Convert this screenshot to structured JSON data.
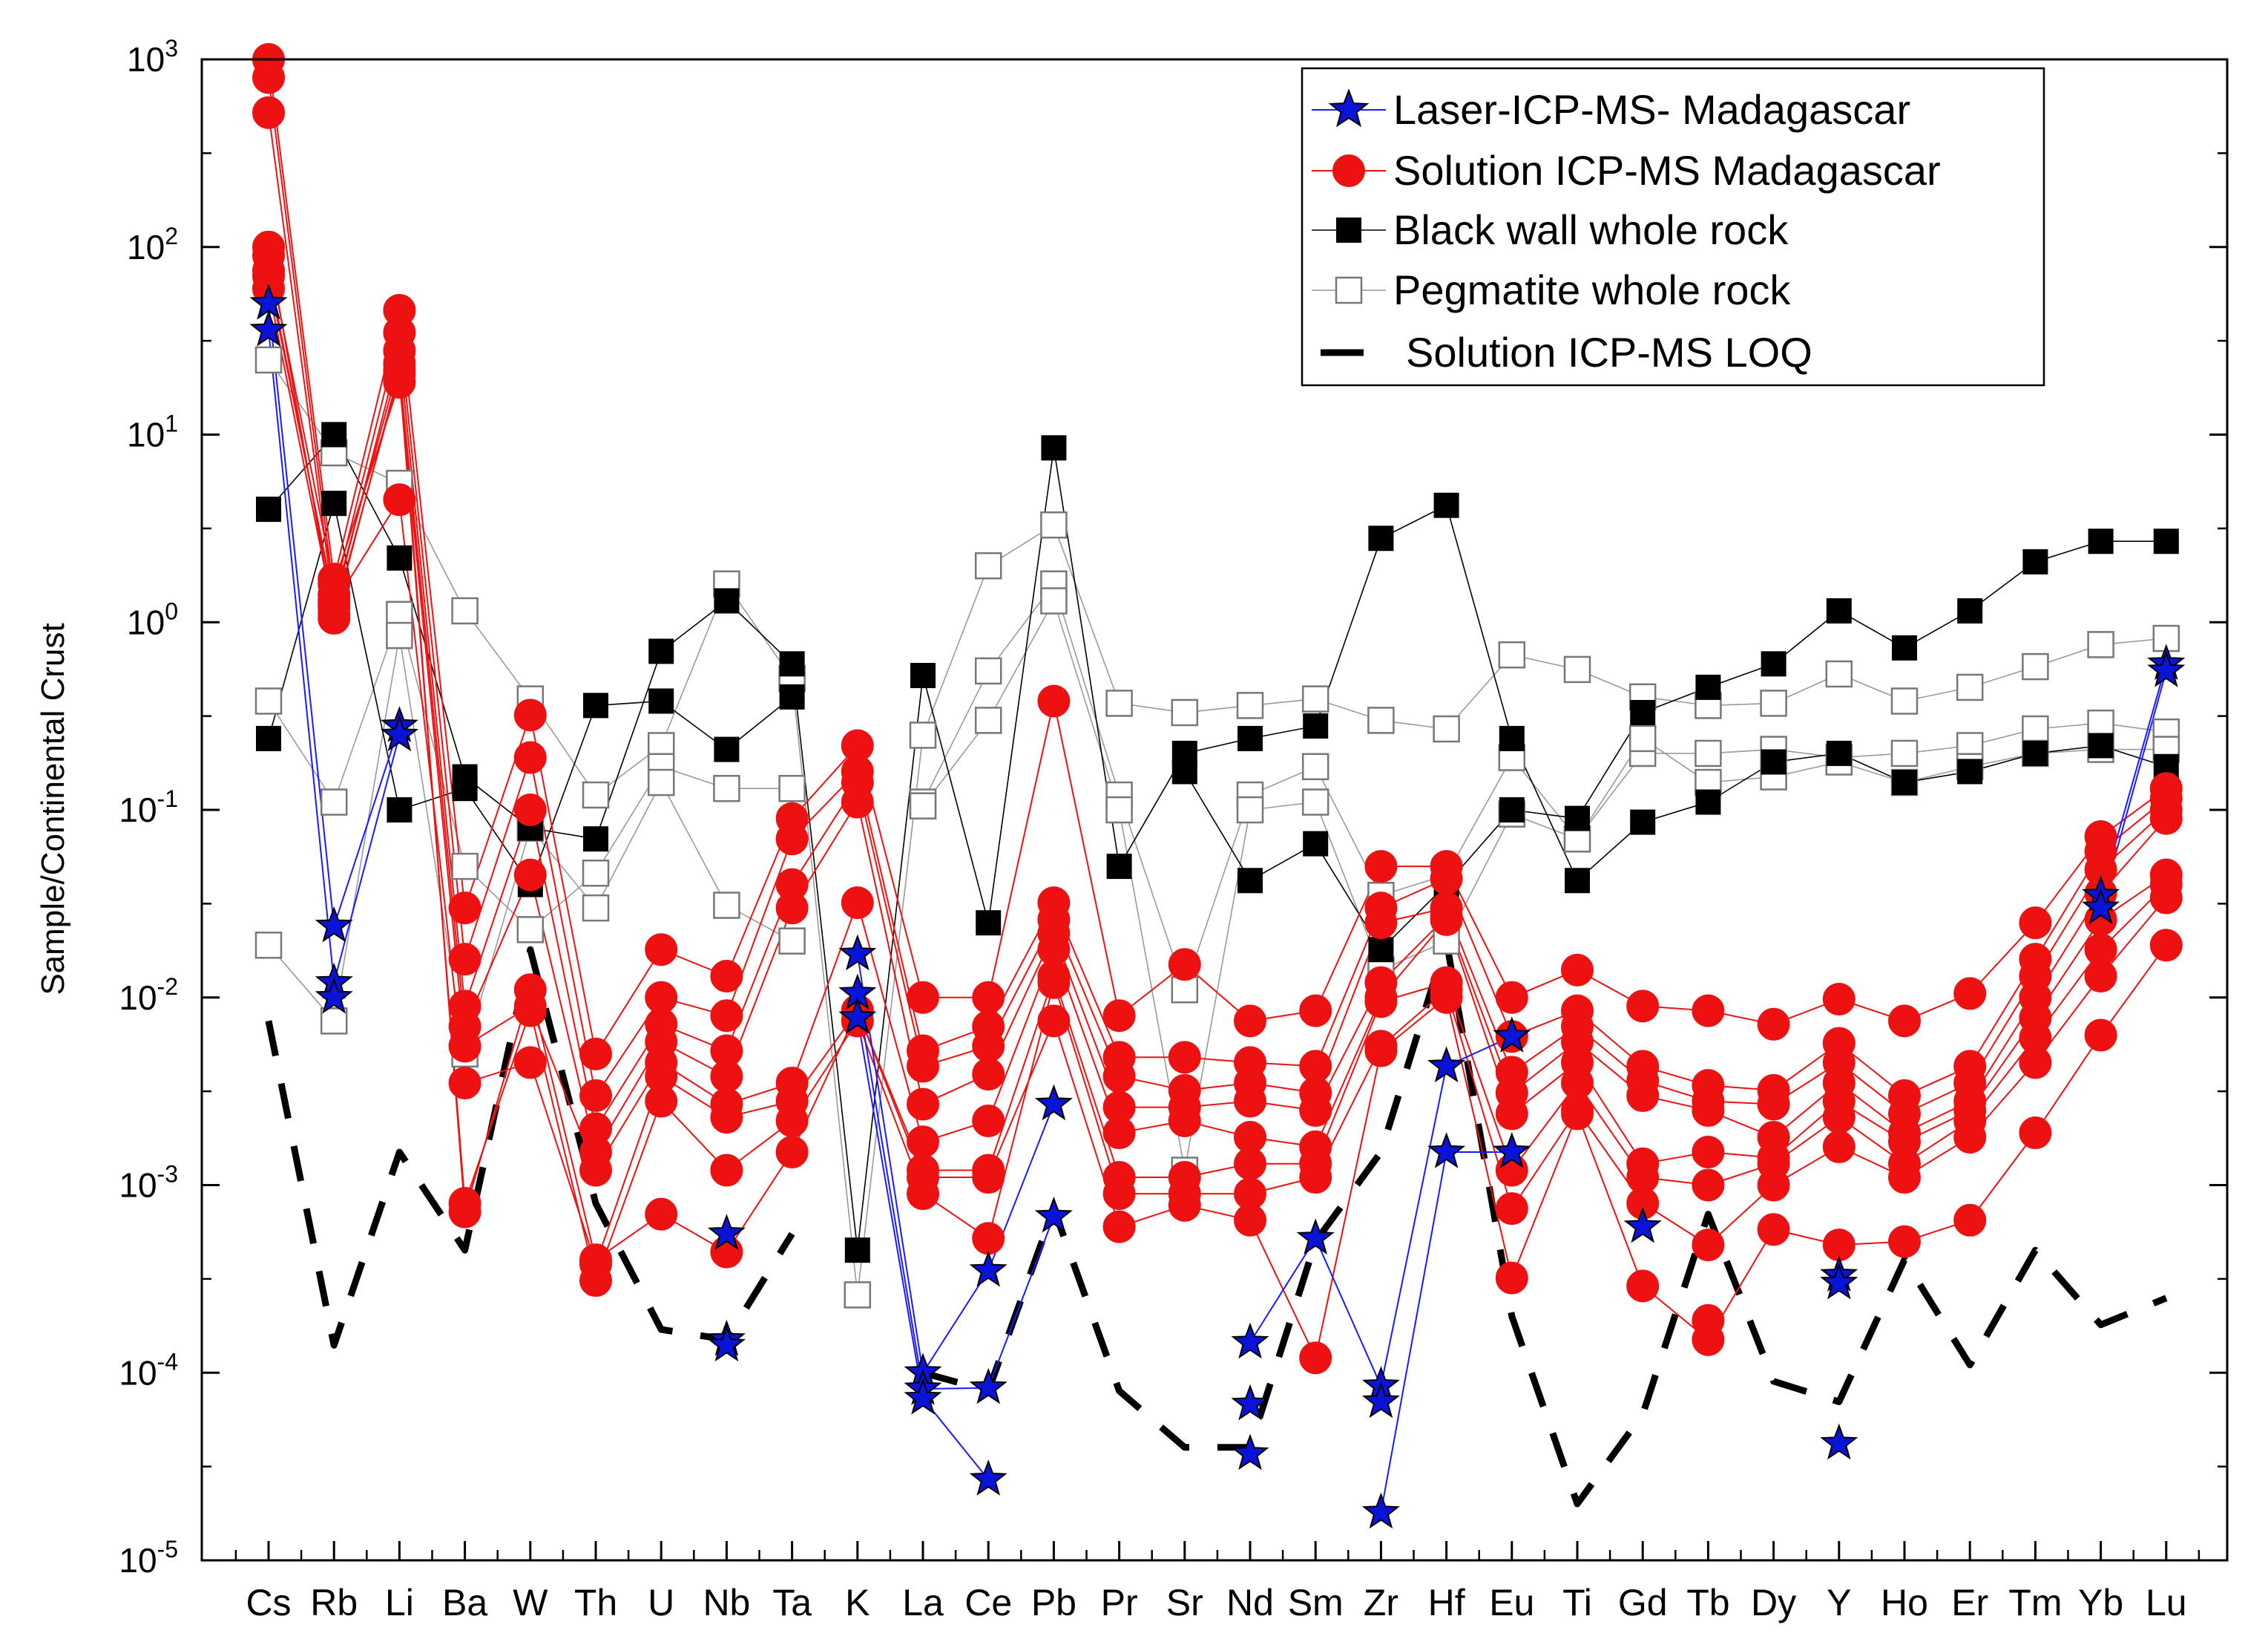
{
  "chart_data": {
    "type": "line",
    "yscale": "log",
    "ylim": [
      1e-05,
      1000
    ],
    "ylabel": "Sample/Continental Crust",
    "xlabel": "",
    "ytick_labels": [
      {
        "base": "10",
        "exp": "-5"
      },
      {
        "base": "10",
        "exp": "-4"
      },
      {
        "base": "10",
        "exp": "-3"
      },
      {
        "base": "10",
        "exp": "-2"
      },
      {
        "base": "10",
        "exp": "-1"
      },
      {
        "base": "10",
        "exp": "0"
      },
      {
        "base": "10",
        "exp": "1"
      },
      {
        "base": "10",
        "exp": "2"
      },
      {
        "base": "10",
        "exp": "3"
      }
    ],
    "categories": [
      "Cs",
      "Rb",
      "Li",
      "Ba",
      "W",
      "Th",
      "U",
      "Nb",
      "Ta",
      "K",
      "La",
      "Ce",
      "Pb",
      "Pr",
      "Sr",
      "Nd",
      "Sm",
      "Zr",
      "Hf",
      "Eu",
      "Ti",
      "Gd",
      "Tb",
      "Dy",
      "Y",
      "Ho",
      "Er",
      "Tm",
      "Yb",
      "Lu"
    ],
    "legend": {
      "position": "top-right",
      "entries": [
        {
          "label": "Laser-ICP-MS- Madagascar",
          "marker": "star"
        },
        {
          "label": "Solution ICP-MS Madagascar",
          "marker": "circle"
        },
        {
          "label": "Black wall whole rock",
          "marker": "filled-square"
        },
        {
          "label": "Pegmatite whole rock",
          "marker": "open-square"
        },
        {
          "label": "Solution ICP-MS LOQ",
          "marker": "dash"
        }
      ]
    },
    "colors": {
      "laser_marker": "#0a14d8",
      "laser_line": "#1a1aff",
      "solution": "#ee1111",
      "black_wall": "#000000",
      "pegmatite": "#9a9a9a",
      "loq": "#000000"
    },
    "series": [
      {
        "group": "black_wall",
        "name": "Black wall whole rock 1",
        "values": [
          4,
          10,
          2.2,
          0.15,
          0.08,
          0.07,
          0.7,
          1.3,
          0.6,
          0.00045,
          0.52,
          0.025,
          8.5,
          0.05,
          0.2,
          0.24,
          0.28,
          2.8,
          4.2,
          0.24,
          0.042,
          0.086,
          0.11,
          0.18,
          0.2,
          0.14,
          0.16,
          0.2,
          0.22,
          0.17
        ]
      },
      {
        "group": "black_wall",
        "name": "Black wall whole rock 2",
        "values": [
          0.24,
          4.3,
          0.1,
          0.13,
          0.04,
          0.36,
          0.38,
          0.21,
          0.4,
          null,
          null,
          null,
          null,
          null,
          0.16,
          0.042,
          0.066,
          0.018,
          0.04,
          0.1,
          0.09,
          0.33,
          0.45,
          0.6,
          1.15,
          0.73,
          1.15,
          2.1,
          2.7,
          2.7
        ]
      },
      {
        "group": "pegmatite",
        "name": "Pegmatite whole rock 1",
        "values": [
          25,
          8,
          5.5,
          1.15,
          0.39,
          0.12,
          0.22,
          1.6,
          0.5,
          0.00026,
          0.25,
          2,
          3.3,
          0.37,
          0.33,
          0.36,
          0.39,
          0.3,
          0.27,
          0.67,
          0.56,
          0.4,
          0.36,
          0.37,
          0.53,
          0.38,
          0.45,
          0.58,
          0.76,
          0.82
        ]
      },
      {
        "group": "pegmatite",
        "name": "Pegmatite whole rock 2",
        "values": [
          0.38,
          0.11,
          1.1,
          0.05,
          0.023,
          0.046,
          0.17,
          0.13,
          0.13,
          null,
          0.11,
          0.55,
          1.6,
          0.12,
          0.011,
          0.12,
          0.17,
          0.035,
          0.045,
          0.19,
          0.07,
          0.2,
          0.2,
          0.21,
          0.19,
          0.2,
          0.22,
          0.27,
          0.29,
          0.26
        ]
      },
      {
        "group": "pegmatite",
        "name": "Pegmatite whole rock 3",
        "values": [
          0.019,
          0.0075,
          0.85,
          0.005,
          0.08,
          0.03,
          0.14,
          0.031,
          0.02,
          null,
          0.105,
          0.3,
          1.3,
          0.1,
          0.0012,
          0.1,
          0.11,
          0.014,
          0.02,
          0.095,
          0.07,
          0.24,
          0.14,
          0.15,
          0.18,
          0.14,
          0.17,
          0.2,
          0.21,
          0.21
        ]
      },
      {
        "group": "laser",
        "name": "Laser-ICP-MS- Madagascar 1",
        "values": [
          50,
          0.024,
          0.28,
          null,
          null,
          null,
          null,
          0.00015,
          null,
          0.017,
          0.0001,
          0.00035,
          0.0027,
          null,
          null,
          0.000145,
          0.00052,
          8.5e-05,
          0.0043,
          0.0062,
          null,
          0.0006,
          null,
          null,
          0.00033,
          null,
          null,
          null,
          0.035,
          0.6
        ]
      },
      {
        "group": "laser",
        "name": "Laser-ICP-MS- Madagascar 2",
        "values": [
          36,
          0.012,
          0.25,
          null,
          null,
          null,
          null,
          0.00055,
          null,
          0.0105,
          8.2e-05,
          8.3e-05,
          0.00068,
          null,
          null,
          6.8e-05,
          null,
          1.8e-05,
          0.0015,
          0.0015,
          null,
          null,
          null,
          null,
          0.0003,
          null,
          null,
          null,
          0.03,
          0.55
        ]
      },
      {
        "group": "laser",
        "name": "Laser-ICP-MS- Madagascar 3",
        "values": [
          null,
          0.01,
          null,
          null,
          null,
          null,
          null,
          0.00014,
          null,
          0.0078,
          7.3e-05,
          2.7e-05,
          null,
          null,
          null,
          3.7e-05,
          null,
          7e-05,
          null,
          null,
          null,
          null,
          null,
          null,
          4.2e-05,
          null,
          null,
          null,
          null,
          null
        ]
      },
      {
        "group": "solution",
        "name": "Solution ICP-MS Madagascar 1",
        "values": [
          1000,
          1.7,
          46,
          0.03,
          0.32,
          0.005,
          0.018,
          0.013,
          0.09,
          0.22,
          0.01,
          0.01,
          0.38,
          0.008,
          0.015,
          0.0075,
          0.0085,
          0.05,
          0.05,
          0.01,
          0.014,
          0.009,
          0.0085,
          0.0072,
          0.0098,
          0.0075,
          0.0105,
          0.025,
          0.072,
          0.13
        ]
      },
      {
        "group": "solution",
        "name": "Solution ICP-MS Madagascar 2",
        "values": [
          800,
          1.4,
          35,
          0.016,
          0.19,
          0.003,
          0.01,
          0.008,
          0.07,
          0.16,
          0.0052,
          0.007,
          0.032,
          0.0048,
          0.0048,
          0.0045,
          0.0043,
          0.03,
          0.043,
          0.0062,
          0.0085,
          0.0043,
          0.0034,
          0.0032,
          0.0057,
          0.003,
          0.0043,
          0.016,
          0.06,
          0.115
        ]
      },
      {
        "group": "solution",
        "name": "Solution ICP-MS Madagascar 3",
        "values": [
          520,
          1.2,
          28,
          0.009,
          0.1,
          0.002,
          0.0072,
          0.0052,
          0.04,
          0.14,
          0.0043,
          0.0055,
          0.026,
          0.0038,
          0.0032,
          0.0035,
          0.0031,
          0.025,
          0.03,
          0.004,
          0.007,
          0.0036,
          0.0028,
          0.0027,
          0.0045,
          0.0024,
          0.0035,
          0.013,
          0.048,
          0.1
        ]
      },
      {
        "group": "solution",
        "name": "Solution ICP-MS Madagascar 4",
        "values": [
          100,
          1.05,
          22,
          0.007,
          0.045,
          0.0015,
          0.0058,
          0.0038,
          0.03,
          0.11,
          0.0027,
          0.0039,
          0.022,
          0.0026,
          0.0026,
          0.0028,
          0.0025,
          0.012,
          0.027,
          0.0031,
          0.0058,
          0.003,
          0.0025,
          0.0018,
          0.0035,
          0.0019,
          0.0028,
          0.01,
          0.036,
          0.09
        ]
      },
      {
        "group": "solution",
        "name": "Solution ICP-MS Madagascar 5",
        "values": [
          90,
          1.6,
          19,
          0.0055,
          0.009,
          0.0012,
          0.0045,
          0.0027,
          0.0035,
          0.032,
          0.0017,
          0.0022,
          0.018,
          0.0019,
          0.0022,
          0.0018,
          0.0016,
          0.01,
          0.026,
          0.0024,
          0.0045,
          0.0013,
          0.0015,
          0.0014,
          0.0028,
          0.0017,
          0.0025,
          0.0078,
          0.026,
          0.045
        ]
      },
      {
        "group": "solution",
        "name": "Solution ICP-MS Madagascar 6",
        "values": [
          75,
          1.25,
          4.5,
          0.0035,
          0.0045,
          0.00038,
          0.0038,
          0.0023,
          0.0028,
          0.0085,
          0.0012,
          0.0012,
          0.013,
          0.0011,
          0.0011,
          0.0013,
          0.0013,
          0.0095,
          0.012,
          0.0012,
          0.0035,
          0.0011,
          0.001,
          0.0013,
          0.0023,
          0.0013,
          0.0022,
          0.0061,
          0.018,
          0.04
        ]
      },
      {
        "group": "solution",
        "name": "Solution ICP-MS Madagascar 7",
        "values": [
          60,
          1.1,
          21,
          0.0008,
          0.0085,
          0.00031,
          0.0028,
          0.0012,
          0.0022,
          0.0075,
          0.0009,
          0.00052,
          0.012,
          0.0009,
          0.0009,
          0.0009,
          0.0011,
          0.0055,
          0.011,
          0.00075,
          0.0025,
          0.0008,
          0.00048,
          0.001,
          0.0016,
          0.0011,
          0.0018,
          0.0045,
          0.013,
          0.034
        ]
      },
      {
        "group": "solution",
        "name": "Solution ICP-MS Madagascar 8",
        "values": [
          70,
          1.3,
          24,
          0.00072,
          0.011,
          0.0004,
          0.0007,
          0.00044,
          0.0015,
          0.0085,
          0.0011,
          0.0011,
          0.0075,
          0.0006,
          0.00078,
          0.00065,
          0.00012,
          0.0052,
          0.01,
          0.00032,
          0.0024,
          0.00029,
          0.00015,
          0.00058,
          0.00048,
          0.0005,
          0.00065,
          0.0019,
          0.0063,
          0.019
        ]
      },
      {
        "group": "solution",
        "name": "Solution ICP-MS Madagascar 9",
        "values": [
          null,
          null,
          null,
          null,
          null,
          null,
          null,
          null,
          null,
          null,
          null,
          null,
          null,
          null,
          null,
          null,
          null,
          null,
          null,
          null,
          null,
          null,
          0.00019,
          null,
          null,
          null,
          null,
          null,
          null,
          null
        ]
      },
      {
        "group": "loq",
        "name": "Solution ICP-MS LOQ",
        "values": [
          0.0075,
          0.00014,
          0.0015,
          0.00045,
          0.018,
          0.0008,
          0.00017,
          0.00015,
          0.00055,
          null,
          0.0001,
          8e-05,
          0.00075,
          8e-05,
          4e-05,
          4e-05,
          0.0005,
          0.0015,
          0.02,
          0.0002,
          2e-05,
          6e-05,
          0.0007,
          9e-05,
          7e-05,
          0.0004,
          0.00011,
          0.00045,
          0.00018,
          0.00025
        ]
      }
    ]
  }
}
